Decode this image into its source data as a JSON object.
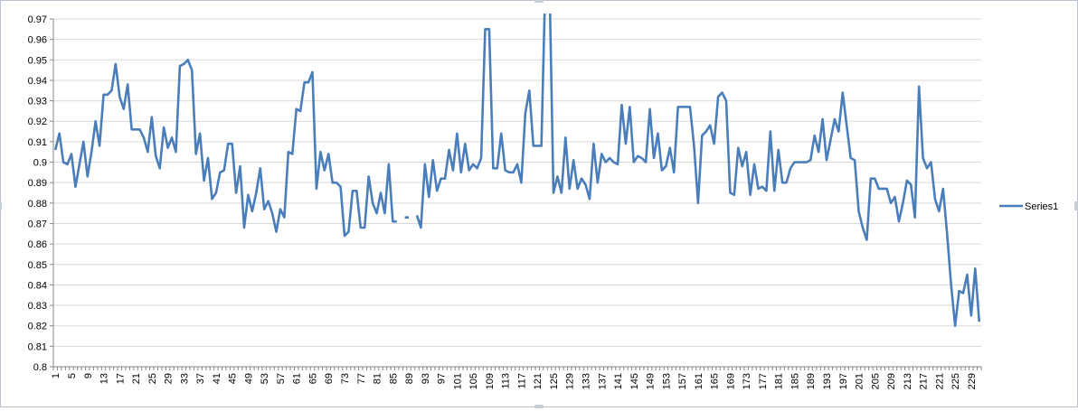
{
  "chart_data": {
    "type": "line",
    "title": "",
    "xlabel": "",
    "ylabel": "",
    "ylim": [
      0.8,
      0.97
    ],
    "yticks": [
      0.8,
      0.81,
      0.82,
      0.83,
      0.84,
      0.85,
      0.86,
      0.87,
      0.88,
      0.89,
      0.9,
      0.91,
      0.92,
      0.93,
      0.94,
      0.95,
      0.96,
      0.97
    ],
    "xtick_labels": [
      "1",
      "5",
      "9",
      "13",
      "17",
      "21",
      "25",
      "29",
      "33",
      "37",
      "41",
      "45",
      "49",
      "53",
      "57",
      "61",
      "65",
      "69",
      "73",
      "77",
      "81",
      "85",
      "89",
      "93",
      "97",
      "101",
      "105",
      "109",
      "113",
      "117",
      "121",
      "125",
      "129",
      "133",
      "137",
      "141",
      "145",
      "149",
      "153",
      "157",
      "161",
      "165",
      "169",
      "173",
      "177",
      "181",
      "185",
      "189",
      "193",
      "197",
      "201",
      "205",
      "209",
      "213",
      "217",
      "221",
      "225",
      "229"
    ],
    "grid": true,
    "legend_position": "right",
    "line_color": "#4a7ebb",
    "series": [
      {
        "name": "Series1",
        "values": [
          0.906,
          0.914,
          0.9,
          0.899,
          0.904,
          0.888,
          0.899,
          0.91,
          0.893,
          0.905,
          0.92,
          0.908,
          0.933,
          0.933,
          0.935,
          0.948,
          0.932,
          0.926,
          0.938,
          0.916,
          0.916,
          0.916,
          0.912,
          0.905,
          0.922,
          0.903,
          0.897,
          0.917,
          0.907,
          0.912,
          0.905,
          0.947,
          0.948,
          0.95,
          0.945,
          0.904,
          0.914,
          0.891,
          0.902,
          0.882,
          0.885,
          0.895,
          0.896,
          0.909,
          0.909,
          0.885,
          0.898,
          0.868,
          0.884,
          0.876,
          0.885,
          0.897,
          0.877,
          0.881,
          0.875,
          0.866,
          0.877,
          0.873,
          0.905,
          0.904,
          0.926,
          0.925,
          0.939,
          0.939,
          0.944,
          0.887,
          0.905,
          0.896,
          0.904,
          0.89,
          0.89,
          0.888,
          0.864,
          0.866,
          0.886,
          0.886,
          0.868,
          0.868,
          0.893,
          0.88,
          0.875,
          0.885,
          0.875,
          0.899,
          0.871,
          0.871,
          null,
          0.873,
          0.873,
          null,
          0.874,
          0.868,
          0.899,
          0.883,
          0.901,
          0.886,
          0.892,
          0.892,
          0.906,
          0.896,
          0.914,
          0.895,
          0.909,
          0.896,
          0.899,
          0.897,
          0.902,
          0.965,
          0.965,
          0.897,
          0.897,
          0.914,
          0.896,
          0.895,
          0.895,
          0.899,
          0.89,
          0.924,
          0.935,
          0.908,
          0.908,
          0.908,
          0.99,
          0.99,
          0.885,
          0.893,
          0.885,
          0.912,
          0.887,
          0.901,
          0.887,
          0.892,
          0.889,
          0.882,
          0.909,
          0.89,
          0.904,
          0.9,
          0.902,
          0.9,
          0.899,
          0.928,
          0.909,
          0.927,
          0.9,
          0.903,
          0.902,
          0.9,
          0.926,
          0.902,
          0.914,
          0.896,
          0.898,
          0.907,
          0.895,
          0.927,
          0.927,
          0.927,
          0.927,
          0.908,
          0.88,
          0.913,
          0.915,
          0.918,
          0.909,
          0.932,
          0.934,
          0.93,
          0.885,
          0.884,
          0.907,
          0.898,
          0.905,
          0.884,
          0.899,
          0.887,
          0.888,
          0.886,
          0.915,
          0.886,
          0.906,
          0.89,
          0.89,
          0.897,
          0.9,
          0.9,
          0.9,
          0.9,
          0.901,
          0.913,
          0.905,
          0.921,
          0.901,
          0.911,
          0.921,
          0.915,
          0.934,
          0.918,
          0.902,
          0.901,
          0.876,
          0.868,
          0.862,
          0.892,
          0.892,
          0.887,
          0.887,
          0.887,
          0.88,
          0.883,
          0.871,
          0.88,
          0.891,
          0.889,
          0.873,
          0.937,
          0.902,
          0.897,
          0.9,
          0.882,
          0.876,
          0.887,
          0.865,
          0.84,
          0.82,
          0.837,
          0.836,
          0.845,
          0.825,
          0.848,
          0.822
        ]
      }
    ]
  }
}
